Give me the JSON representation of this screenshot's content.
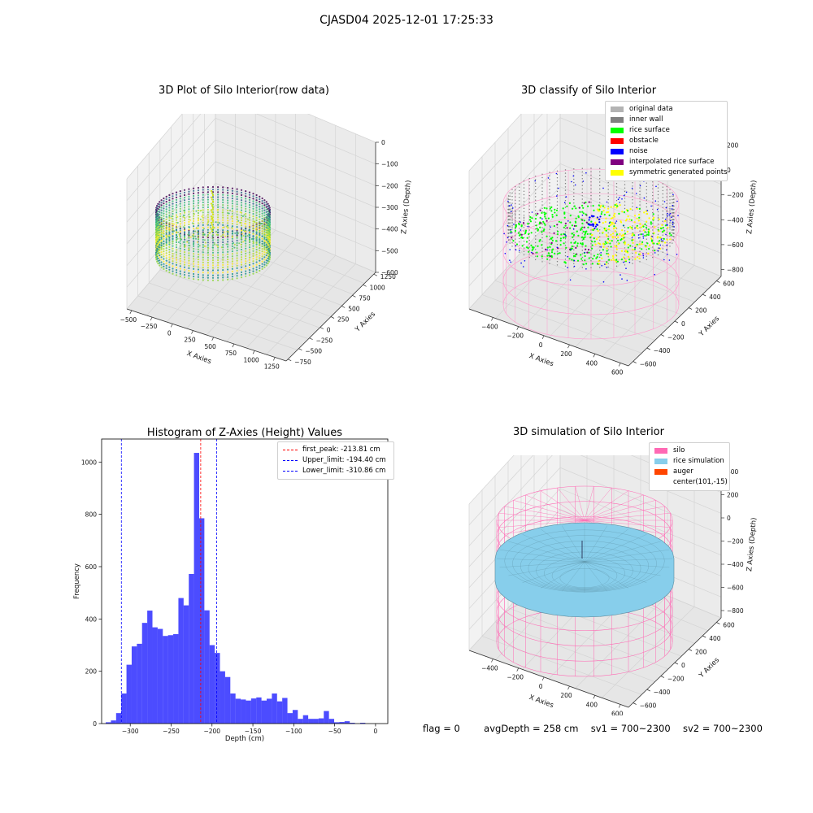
{
  "figure": {
    "suptitle": "CJASD04 2025-12-01 17:25:33"
  },
  "panels": {
    "raw": {
      "title": "3D Plot of Silo Interior(row data)",
      "x_ticks": [
        "−500",
        "−250",
        "0",
        "250",
        "500",
        "750",
        "1000",
        "1250"
      ],
      "y_ticks": [
        "−750",
        "−500",
        "−250",
        "0",
        "250",
        "500",
        "750",
        "1000",
        "1250"
      ],
      "z_ticks": [
        "0",
        "−100",
        "−200",
        "−300",
        "−400",
        "−500",
        "−600"
      ],
      "xlabel": "X Axies",
      "ylabel": "Y Axies",
      "zlabel": "Z Axies (Depth)"
    },
    "classify": {
      "title": "3D classify of Silo Interior",
      "x_ticks": [
        "−400",
        "−200",
        "0",
        "200",
        "400",
        "600"
      ],
      "y_ticks": [
        "−600",
        "−400",
        "−200",
        "0",
        "200",
        "400",
        "600"
      ],
      "z_ticks": [
        "200",
        "0",
        "−200",
        "−400",
        "−600",
        "−800"
      ],
      "xlabel": "X Axies",
      "ylabel": "Y Axies",
      "zlabel": "Z Axies (Depth)",
      "legend": [
        {
          "label": "original data",
          "color": "#b3b3b3"
        },
        {
          "label": "inner wall",
          "color": "#808080"
        },
        {
          "label": "rice surface",
          "color": "#00ff00"
        },
        {
          "label": "obstacle",
          "color": "#ff0000"
        },
        {
          "label": "noise",
          "color": "#0000ff"
        },
        {
          "label": "interpolated rice surface",
          "color": "#800080"
        },
        {
          "label": "symmetric generated points",
          "color": "#ffff00"
        }
      ]
    },
    "simulation": {
      "title": "3D simulation of Silo Interior",
      "x_ticks": [
        "−400",
        "−200",
        "0",
        "200",
        "400",
        "600"
      ],
      "y_ticks": [
        "−600",
        "−400",
        "−200",
        "0",
        "200",
        "400",
        "600"
      ],
      "z_ticks": [
        "400",
        "200",
        "0",
        "−200",
        "−400",
        "−600",
        "−800"
      ],
      "xlabel": "X Axies",
      "ylabel": "Y Axies",
      "zlabel": "Z Axies (Depth)",
      "legend": [
        {
          "label": "silo",
          "color": "#ff69b4"
        },
        {
          "label": "rice simulation",
          "color": "#87ceeb"
        },
        {
          "label": "auger",
          "color": "#ff4500"
        },
        {
          "label": "center(101,-15)",
          "color": ""
        }
      ]
    },
    "footer": {
      "flag": "flag = 0",
      "avg_depth": "avgDepth = 258 cm",
      "sv1": "sv1 = 700~2300",
      "sv2": "sv2 = 700~2300"
    }
  },
  "chart_data": {
    "type": "bar",
    "title": "Histogram of Z-Axies (Height) Values",
    "xlabel": "Depth (cm)",
    "ylabel": "Frequency",
    "xlim": [
      -335,
      15
    ],
    "ylim": [
      0,
      1088
    ],
    "x_ticks": [
      -300,
      -250,
      -200,
      -150,
      -100,
      -50,
      0
    ],
    "y_ticks": [
      0,
      200,
      400,
      600,
      800,
      1000
    ],
    "bin_width": 6.35,
    "bins_start": -330,
    "values": [
      5,
      12,
      40,
      115,
      225,
      295,
      305,
      385,
      432,
      368,
      362,
      335,
      338,
      342,
      480,
      452,
      572,
      1035,
      785,
      433,
      300,
      270,
      200,
      178,
      115,
      95,
      92,
      88,
      96,
      100,
      88,
      95,
      115,
      85,
      98,
      40,
      52,
      18,
      32,
      18,
      18,
      20,
      48,
      18,
      5,
      6,
      9,
      3,
      0,
      3
    ],
    "bar_color": "#0000ff",
    "bar_alpha": 0.7,
    "vlines": [
      {
        "label": "first_peak: -213.81 cm",
        "x": -213.81,
        "color": "#ff0000"
      },
      {
        "label": "Upper_limit: -194.40 cm",
        "x": -194.4,
        "color": "#0000ff"
      },
      {
        "label": "Lower_limit: -310.86 cm",
        "x": -310.86,
        "color": "#0000ff"
      }
    ],
    "legend_position": "top-right"
  }
}
